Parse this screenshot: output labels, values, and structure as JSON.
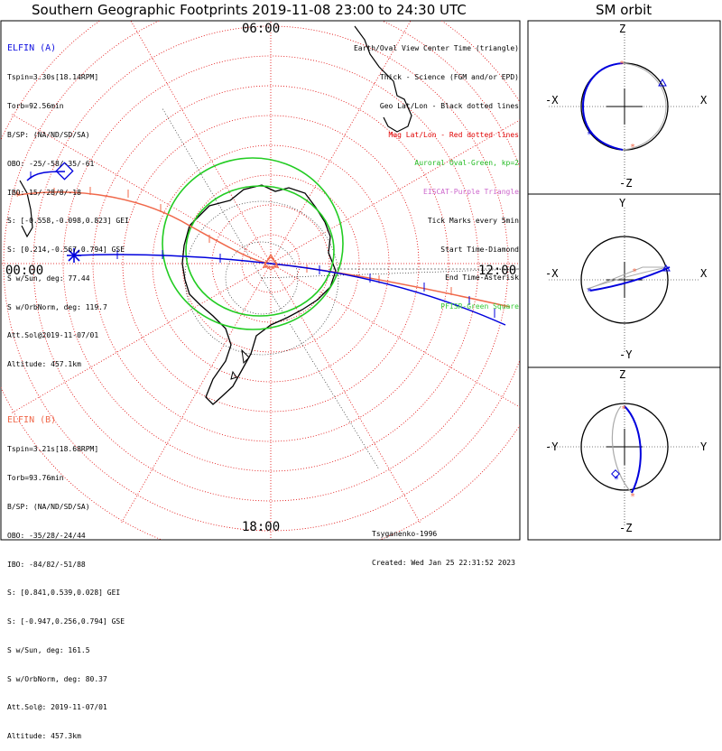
{
  "title": "Southern Geographic Footprints 2019-11-08 23:00 to 24:30 UTC",
  "side_title": "SM orbit",
  "time_labels": {
    "top": "06:00",
    "left": "00:00",
    "right": "12:00",
    "bottom": "18:00"
  },
  "legend": [
    {
      "text": "Earth/Oval View Center Time (triangle)",
      "color": "#000000"
    },
    {
      "text": "Thick - Science (FGM and/or EPD)",
      "color": "#000000"
    },
    {
      "text": "Geo Lat/Lon - Black dotted lines",
      "color": "#000000"
    },
    {
      "text": "Mag Lat/Lon - Red dotted lines",
      "color": "#e00000"
    },
    {
      "text": "Auroral Oval-Green, kp=2",
      "color": "#22bb22"
    },
    {
      "text": "EISCAT-Purple Triangle",
      "color": "#cc66cc"
    },
    {
      "text": "Tick Marks every 5min",
      "color": "#000000"
    },
    {
      "text": "Start Time-Diamond",
      "color": "#000000"
    },
    {
      "text": "End Time-Asterisk",
      "color": "#000000"
    },
    {
      "text": "PFISR-Green Square",
      "color": "#33cc33"
    }
  ],
  "elfin_a": {
    "header": "ELFIN (A)",
    "lines": [
      "Tspin=3.30s[18.14RPM]",
      "Torb=92.56min",
      "B/SP: (NA/ND/SD/SA)",
      "OBO: -25/-58/-35/-61",
      "IBO: 15/-28/8/-18",
      "S: [-0.558,-0.098,0.823] GEI",
      "S: [0.214,-0.567,0.794] GSE",
      "S w/Sun, deg: 77.44",
      "S w/OrbNorm, deg: 119.7",
      "Att.Sol@2019-11-07/01",
      "Altitude: 457.1km"
    ]
  },
  "elfin_b": {
    "header": "ELFIN (B)",
    "lines": [
      "Tspin=3.21s[18.68RPM]",
      "Torb=93.76min",
      "B/SP: (NA/ND/SD/SA)",
      "OBO: -35/28/-24/44",
      "IBO: -84/82/-51/88",
      "S: [0.841,0.539,0.028] GEI",
      "S: [-0.947,0.256,0.794] GSE",
      "S w/Sun, deg: 161.5",
      "S w/OrbNorm, deg: 80.37",
      "Att.Sol@: 2019-11-07/01",
      "Altitude: 457.3km"
    ]
  },
  "footer": {
    "author": "Tsyganenko-1996",
    "created": "Created: Wed Jan 25 22:31:52 2023"
  },
  "orbit_panels": [
    {
      "top": "Z",
      "bottom": "-Z",
      "left": "-X",
      "right": "X"
    },
    {
      "top": "Y",
      "bottom": "-Y",
      "left": "-X",
      "right": "X"
    },
    {
      "top": "Z",
      "bottom": "-Z",
      "left": "-Y",
      "right": "Y"
    }
  ],
  "colors": {
    "elfin_a": "#0000dd",
    "elfin_b": "#f0684a",
    "oval": "#22cc22",
    "mag_grid": "#e00000"
  }
}
